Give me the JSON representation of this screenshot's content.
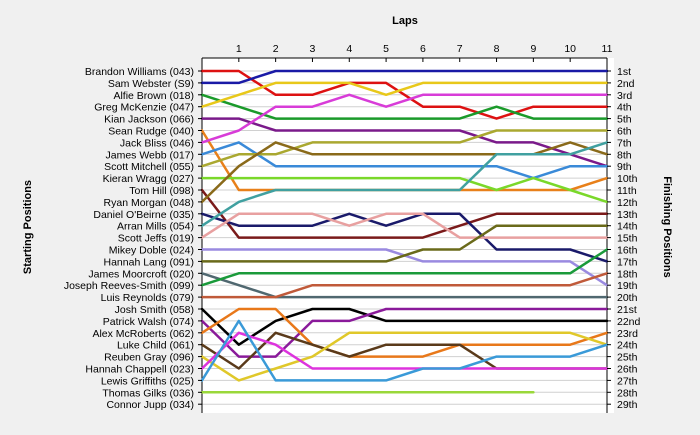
{
  "chart_data": {
    "type": "line",
    "title": "",
    "xlabel": "Laps",
    "ylabel_left": "Starting Positions",
    "ylabel_right": "Finishing Positions",
    "x": [
      0,
      1,
      2,
      3,
      4,
      5,
      6,
      7,
      8,
      9,
      10,
      11
    ],
    "x_tick_labels": [
      "1",
      "2",
      "3",
      "4",
      "5",
      "6",
      "7",
      "8",
      "9",
      "10",
      "11"
    ],
    "positions_count": 29,
    "finish_labels": [
      "1st",
      "2nd",
      "3rd",
      "4th",
      "5th",
      "6th",
      "7th",
      "8th",
      "9th",
      "10th",
      "11th",
      "12th",
      "13th",
      "14th",
      "15th",
      "16th",
      "17th",
      "18th",
      "19th",
      "20th",
      "21st",
      "22nd",
      "23rd",
      "24th",
      "25th",
      "26th",
      "27th",
      "28th",
      "29th"
    ],
    "y_inverted": true,
    "grid": "horizontal",
    "series": [
      {
        "name": "Brandon Williams (043)",
        "color": "#dd1111",
        "values": [
          1,
          1,
          3,
          3,
          2,
          2,
          4,
          4,
          5,
          4,
          4,
          4
        ]
      },
      {
        "name": "Sam Webster (S9)",
        "color": "#1a1aa6",
        "values": [
          2,
          2,
          1,
          1,
          1,
          1,
          1,
          1,
          1,
          1,
          1,
          1
        ]
      },
      {
        "name": "Alfie Brown (018)",
        "color": "#1a9a2a",
        "values": [
          3,
          4,
          5,
          5,
          5,
          5,
          5,
          5,
          4,
          5,
          5,
          5
        ]
      },
      {
        "name": "Greg McKenzie (047)",
        "color": "#e8c81a",
        "values": [
          4,
          3,
          2,
          2,
          2,
          3,
          2,
          2,
          2,
          2,
          2,
          2
        ]
      },
      {
        "name": "Kian Jackson (066)",
        "color": "#7a1a8a",
        "values": [
          5,
          5,
          6,
          6,
          6,
          6,
          6,
          6,
          7,
          7,
          8,
          9
        ]
      },
      {
        "name": "Sean Rudge (040)",
        "color": "#e8801a",
        "values": [
          6,
          11,
          11,
          11,
          11,
          11,
          11,
          11,
          11,
          11,
          11,
          10
        ]
      },
      {
        "name": "Jack Bliss (046)",
        "color": "#d83cd8",
        "values": [
          7,
          6,
          4,
          4,
          3,
          4,
          3,
          3,
          3,
          3,
          3,
          3
        ]
      },
      {
        "name": "James Webb (017)",
        "color": "#3a8ad8",
        "values": [
          8,
          7,
          9,
          9,
          9,
          9,
          9,
          9,
          9,
          10,
          9,
          9
        ]
      },
      {
        "name": "Scott Mitchell (055)",
        "color": "#aaa830",
        "values": [
          9,
          8,
          8,
          7,
          7,
          7,
          7,
          7,
          6,
          6,
          6,
          6
        ]
      },
      {
        "name": "Kieran Wragg (027)",
        "color": "#7ad82a",
        "values": [
          10,
          10,
          10,
          10,
          10,
          10,
          10,
          10,
          11,
          10,
          11,
          12
        ]
      },
      {
        "name": "Tom Hill (098)",
        "color": "#7a1a1a",
        "values": [
          11,
          15,
          15,
          15,
          15,
          15,
          15,
          14,
          13,
          13,
          13,
          13
        ]
      },
      {
        "name": "Ryan Morgan (048)",
        "color": "#8a6a1a",
        "values": [
          12,
          9,
          7,
          8,
          8,
          8,
          8,
          8,
          8,
          8,
          7,
          8
        ]
      },
      {
        "name": "Daniel O'Beirne (035)",
        "color": "#1a1a6a",
        "values": [
          13,
          14,
          14,
          14,
          13,
          14,
          13,
          13,
          16,
          16,
          16,
          17
        ]
      },
      {
        "name": "Arran Mills (054)",
        "color": "#40a0a0",
        "values": [
          14,
          12,
          11,
          11,
          11,
          11,
          11,
          11,
          8,
          8,
          8,
          7
        ]
      },
      {
        "name": "Scott Jeffs (019)",
        "color": "#e8a0a0",
        "values": [
          15,
          13,
          13,
          13,
          14,
          13,
          13,
          15,
          15,
          15,
          15,
          15
        ]
      },
      {
        "name": "Mikey Doble (024)",
        "color": "#9a8ae0",
        "values": [
          16,
          16,
          16,
          16,
          16,
          16,
          17,
          17,
          17,
          17,
          17,
          19
        ]
      },
      {
        "name": "Hannah Lang (091)",
        "color": "#6a6a1a",
        "values": [
          17,
          17,
          17,
          17,
          17,
          17,
          16,
          16,
          14,
          14,
          14,
          14
        ]
      },
      {
        "name": "James Moorcroft (020)",
        "color": "#506870",
        "values": [
          18,
          19,
          20,
          20,
          20,
          20,
          20,
          20,
          20,
          20,
          20,
          20
        ]
      },
      {
        "name": "Joseph Reeves-Smith (099)",
        "color": "#1a9a3a",
        "values": [
          19,
          18,
          18,
          18,
          18,
          18,
          18,
          18,
          18,
          18,
          18,
          16
        ]
      },
      {
        "name": "Luis Reynolds (079)",
        "color": "#c05a3a",
        "values": [
          20,
          20,
          20,
          19,
          19,
          19,
          19,
          19,
          19,
          19,
          19,
          18
        ]
      },
      {
        "name": "Josh Smith (058)",
        "color": "#000000",
        "values": [
          21,
          24,
          22,
          21,
          21,
          22,
          22,
          22,
          22,
          22,
          22,
          22
        ]
      },
      {
        "name": "Patrick Walsh (074)",
        "color": "#8a1a9a",
        "values": [
          22,
          25,
          25,
          22,
          22,
          21,
          21,
          21,
          21,
          21,
          21,
          21
        ]
      },
      {
        "name": "Alex McRoberts (062)",
        "color": "#e8781a",
        "values": [
          23,
          21,
          21,
          24,
          25,
          25,
          25,
          24,
          24,
          24,
          24,
          23
        ]
      },
      {
        "name": "Luke Child (061)",
        "color": "#5a3a1a",
        "values": [
          24,
          26,
          23,
          24,
          25,
          24,
          24,
          24,
          26,
          26,
          26,
          26
        ]
      },
      {
        "name": "Reuben Gray (096)",
        "color": "#e0c82a",
        "values": [
          25,
          27,
          26,
          25,
          23,
          23,
          23,
          23,
          23,
          23,
          23,
          24
        ]
      },
      {
        "name": "Hannah Chappell (023)",
        "color": "#dd33dd",
        "values": [
          26,
          23,
          24,
          26,
          26,
          26,
          26,
          26,
          26,
          26,
          26,
          26
        ]
      },
      {
        "name": "Lewis Griffiths (025)",
        "color": "#3a9ad8",
        "values": [
          27,
          22,
          27,
          27,
          27,
          27,
          26,
          26,
          25,
          25,
          25,
          24
        ]
      },
      {
        "name": "Thomas Gilks (036)",
        "color": "#9ad83a",
        "values": [
          28,
          28,
          28,
          28,
          28,
          28,
          28,
          28,
          28,
          28,
          null,
          null
        ]
      },
      {
        "name": "Connor Jupp (034)",
        "color": "#808080",
        "values": [
          29,
          null,
          null,
          null,
          null,
          null,
          null,
          null,
          null,
          null,
          null,
          null
        ]
      }
    ]
  }
}
